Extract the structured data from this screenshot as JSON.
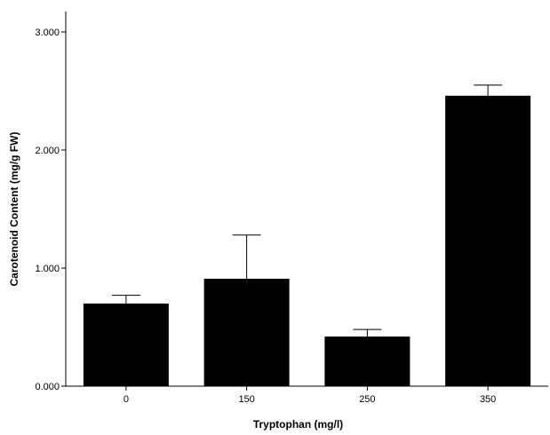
{
  "chart_data": {
    "type": "bar",
    "categories": [
      "0",
      "150",
      "250",
      "350"
    ],
    "values": [
      0.7,
      0.91,
      0.42,
      2.46
    ],
    "error_upper": [
      0.77,
      1.28,
      0.48,
      2.55
    ],
    "xlabel": "Tryptophan (mg/l)",
    "ylabel": "Carotenoid Content (mg/g FW)",
    "ylim": [
      0,
      3.0
    ],
    "yticks": [
      0,
      1,
      2,
      3
    ],
    "ytick_labels": [
      "0.000",
      "1.000",
      "2.000",
      "3.000"
    ],
    "grid": false,
    "legend": "none",
    "bar_color": "#000000"
  }
}
